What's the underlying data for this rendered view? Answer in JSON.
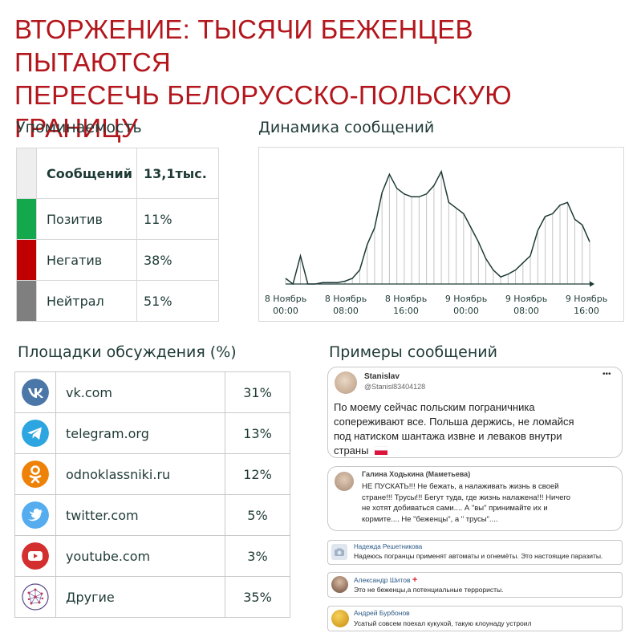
{
  "title_line1": "ВТОРЖЕНИЕ: ТЫСЯЧИ БЕЖЕНЦЕВ ПЫТАЮТСЯ",
  "title_line2": "ПЕРЕСЕЧЬ БЕЛОРУССКО-ПОЛЬСКУЮ ГРАНИЦУ",
  "mentions": {
    "heading": "Упоминаемость",
    "header_label": "Сообщений",
    "header_value": "13,1тыс.",
    "rows": [
      {
        "label": "Позитив",
        "value": "11%",
        "color": "#13a84c"
      },
      {
        "label": "Негатив",
        "value": "38%",
        "color": "#c00000"
      },
      {
        "label": "Нейтрал",
        "value": "51%",
        "color": "#7f7f7f"
      }
    ]
  },
  "dynamics": {
    "heading": "Динамика сообщений"
  },
  "chart_data": {
    "type": "area",
    "title": "Динамика сообщений",
    "x_tick_labels": [
      [
        "8 Ноябрь",
        "00:00"
      ],
      [
        "8 Ноябрь",
        "08:00"
      ],
      [
        "8 Ноябрь",
        "16:00"
      ],
      [
        "9 Ноябрь",
        "00:00"
      ],
      [
        "9 Ноябрь",
        "08:00"
      ],
      [
        "9 Ноябрь",
        "16:00"
      ]
    ],
    "x_ticks_hours": [
      0,
      8,
      16,
      24,
      32,
      40
    ],
    "x_hours": [
      0,
      1,
      2,
      3,
      4,
      5,
      6,
      7,
      8,
      9,
      10,
      11,
      12,
      13,
      14,
      15,
      16,
      17,
      18,
      19,
      20,
      21,
      22,
      23,
      24,
      25,
      26,
      27,
      28,
      29,
      30,
      31,
      32,
      33,
      34,
      35,
      36,
      37,
      38,
      39,
      40,
      41
    ],
    "values": [
      4,
      0,
      20,
      0,
      0,
      1,
      1,
      1,
      2,
      4,
      10,
      28,
      40,
      65,
      78,
      68,
      64,
      62,
      62,
      64,
      70,
      80,
      58,
      54,
      50,
      40,
      30,
      18,
      10,
      5,
      7,
      10,
      15,
      20,
      38,
      48,
      50,
      56,
      58,
      46,
      42,
      30
    ],
    "ylim": [
      0,
      85
    ],
    "grid": false,
    "line_color": "#1e3a35"
  },
  "platforms": {
    "heading": "Площадки обсуждения (%)",
    "rows": [
      {
        "name": "vk.com",
        "pct": "31%",
        "icon": "vk-icon",
        "color": "#4a76a8"
      },
      {
        "name": "telegram.org",
        "pct": "13%",
        "icon": "telegram-icon",
        "color": "#2ca5e0"
      },
      {
        "name": "odnoklassniki.ru",
        "pct": "12%",
        "icon": "odnoklassniki-icon",
        "color": "#ee8208"
      },
      {
        "name": "twitter.com",
        "pct": "5%",
        "icon": "twitter-icon",
        "color": "#55acee"
      },
      {
        "name": "youtube.com",
        "pct": "3%",
        "icon": "youtube-icon",
        "color": "#d32f2f"
      },
      {
        "name": "Другие",
        "pct": "35%",
        "icon": "network-icon",
        "color": "#5b4a8b"
      }
    ]
  },
  "examples": {
    "heading": "Примеры сообщений",
    "tweet": {
      "name": "Stanislav",
      "handle": "@Stanisl83404128",
      "more": "•••",
      "lines": [
        "По моему сейчас польским пограничника",
        "сопереживают все. Польша держись, не ломайся",
        "под натиском шантажа извне и леваков внутри",
        "страны"
      ]
    },
    "comments": [
      {
        "name": "Галина Ходькина (Маметьева)",
        "lines": [
          "НЕ ПУСКАТЬ!!!  Не бежать,  а налаживать жизнь в своей",
          "стране!!!  Трусы!!!  Бегут туда,  где жизнь налажена!!!  Ничего",
          "не хотят добиваться сами.... А \"вы\" принимайте их и",
          "кормите.... Не \"беженцы\",  а \" трусы\"...."
        ]
      },
      {
        "name": "Надежда Решетникова",
        "lines": [
          "Надеюсь погранцы применят автоматы и огнемёты. Это настоящие паразиты."
        ]
      },
      {
        "name": "Александр Шитов",
        "lines": [
          "Это не беженцы,а потенциальные террористы."
        ]
      },
      {
        "name": "Андрей Бурбонов",
        "lines": [
          "Усатый совсем поехал кукухой, такую клоунаду устроил"
        ]
      }
    ]
  }
}
